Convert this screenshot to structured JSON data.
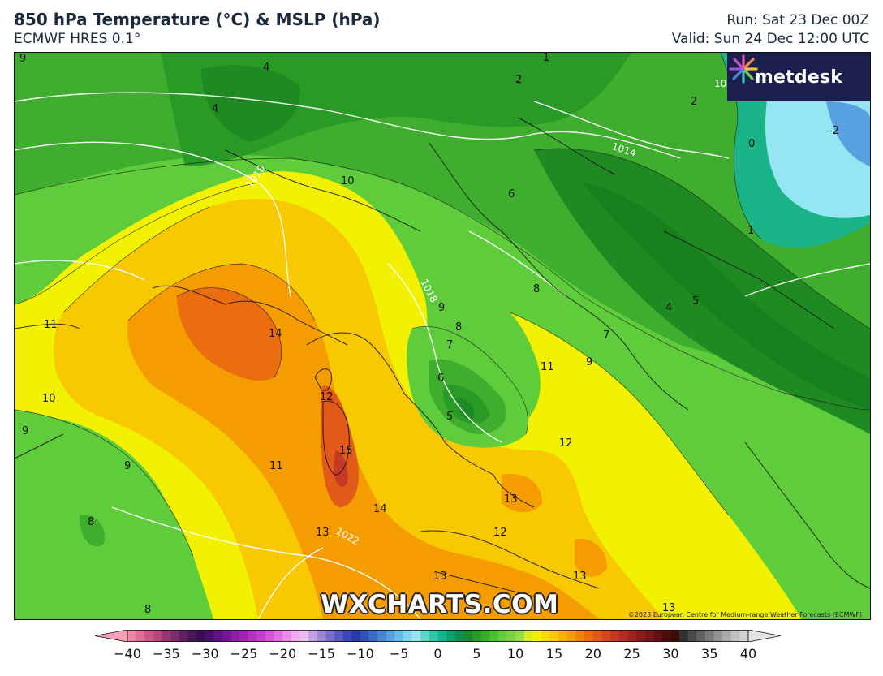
{
  "header": {
    "title": "850 hPa Temperature (°C) & MSLP (hPa)",
    "model": "ECMWF HRES 0.1°",
    "run": "Run: Sat 23 Dec 00Z",
    "valid": "Valid: Sun 24 Dec 12:00 UTC"
  },
  "logo": {
    "brand": "metdesk"
  },
  "watermark": "WXCHARTS.COM",
  "copyright": "©2023 European Centre for Medium-range Weather Forecasts (ECMWF)",
  "colorbar": {
    "ticks": [
      "−40",
      "−35",
      "−30",
      "−25",
      "−20",
      "−15",
      "−10",
      "−5",
      "0",
      "5",
      "10",
      "15",
      "20",
      "25",
      "30",
      "35",
      "40"
    ],
    "min": -40,
    "max": 40,
    "colors": [
      "#f7a1b8",
      "#ef86a5",
      "#e06d95",
      "#cc5787",
      "#b5487c",
      "#963872",
      "#7a2c69",
      "#5e1f62",
      "#48175a",
      "#3a0e52",
      "#4a0f6a",
      "#5e1282",
      "#741595",
      "#8a1ca5",
      "#a027b3",
      "#b433c0",
      "#c63fcc",
      "#d456d6",
      "#e06ee0",
      "#e98be8",
      "#f0a8f0",
      "#e8c0ee",
      "#c4a0e0",
      "#9e86d6",
      "#7a70cc",
      "#5a5ac2",
      "#3a46b4",
      "#2a3aa8",
      "#2e52b6",
      "#3c6cc4",
      "#4a86d2",
      "#58a0e0",
      "#68bce8",
      "#7ed4ee",
      "#96e4f2",
      "#5ed6c6",
      "#2ec4a8",
      "#16b48c",
      "#0aa26e",
      "#109054",
      "#1a8a2c",
      "#2a9a28",
      "#3aac2c",
      "#4cbe32",
      "#62cc3a",
      "#7ad442",
      "#94dc46",
      "#d6ec1c",
      "#f2f200",
      "#f6da00",
      "#f8c800",
      "#f8b400",
      "#f49c00",
      "#f08400",
      "#ec6c10",
      "#e25a18",
      "#d44820",
      "#c43a24",
      "#b22e24",
      "#9e2420",
      "#8a1c1c",
      "#761616",
      "#621212",
      "#4e0e0e",
      "#3e0a0a",
      "#323232",
      "#4a4a4a",
      "#626262",
      "#7a7a7a",
      "#929292",
      "#aaaaaa",
      "#c0c0c0",
      "#d4d4d4",
      "#e6e6e6"
    ]
  },
  "map_labels": {
    "temp_contours": [
      "14",
      "15",
      "13",
      "12",
      "11",
      "10",
      "9",
      "8",
      "7",
      "6",
      "5",
      "4",
      "2",
      "1",
      "0",
      "-2"
    ],
    "isobars": [
      "1014",
      "1018",
      "1022",
      "1018",
      "1014"
    ],
    "legend_unit": "°C"
  },
  "isotherm_labels": [
    {
      "t": "9"
    },
    {
      "t": "4"
    },
    {
      "t": "4"
    },
    {
      "t": "2"
    },
    {
      "t": "1"
    },
    {
      "t": "2"
    },
    {
      "t": "0"
    },
    {
      "t": "-2"
    },
    {
      "t": "10"
    },
    {
      "t": "6"
    },
    {
      "t": "8"
    },
    {
      "t": "7"
    },
    {
      "t": "9"
    },
    {
      "t": "1"
    },
    {
      "t": "4"
    },
    {
      "t": "5"
    },
    {
      "t": "11"
    },
    {
      "t": "10"
    },
    {
      "t": "14"
    },
    {
      "t": "12"
    },
    {
      "t": "9"
    },
    {
      "t": "8"
    },
    {
      "t": "7"
    },
    {
      "t": "6"
    },
    {
      "t": "5"
    },
    {
      "t": "11"
    },
    {
      "t": "12"
    },
    {
      "t": "9"
    },
    {
      "t": "9"
    },
    {
      "t": "11"
    },
    {
      "t": "15"
    },
    {
      "t": "8"
    },
    {
      "t": "13"
    },
    {
      "t": "14"
    },
    {
      "t": "13"
    },
    {
      "t": "12"
    },
    {
      "t": "13"
    },
    {
      "t": "13"
    },
    {
      "t": "13"
    },
    {
      "t": "8"
    }
  ],
  "isobar_labels": [
    {
      "t": "1018"
    },
    {
      "t": "1014"
    },
    {
      "t": "1018"
    },
    {
      "t": "1022"
    },
    {
      "t": "10"
    }
  ]
}
